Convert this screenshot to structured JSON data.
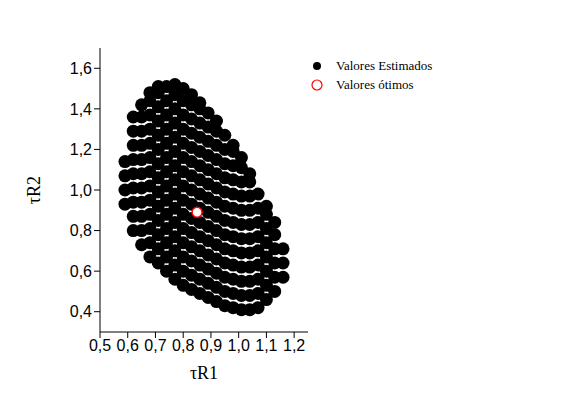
{
  "chart_data": {
    "type": "scatter",
    "x_label": "τR1",
    "y_label": "τR2",
    "legend": "upper right",
    "xlim": [
      0.5,
      1.25
    ],
    "ylim": [
      0.3,
      1.7
    ],
    "xticks": [
      {
        "value": 0.5,
        "label": "0,5"
      },
      {
        "value": 0.6,
        "label": "0,6"
      },
      {
        "value": 0.7,
        "label": "0,7"
      },
      {
        "value": 0.8,
        "label": "0,8"
      },
      {
        "value": 0.9,
        "label": "0,9"
      },
      {
        "value": 1.0,
        "label": "1,0"
      },
      {
        "value": 1.1,
        "label": "1,1"
      },
      {
        "value": 1.2,
        "label": "1,2"
      }
    ],
    "yticks": [
      {
        "value": 0.4,
        "label": "0,4"
      },
      {
        "value": 0.6,
        "label": "0,6"
      },
      {
        "value": 0.8,
        "label": "0,8"
      },
      {
        "value": 1.0,
        "label": "1,0"
      },
      {
        "value": 1.2,
        "label": "1,2"
      },
      {
        "value": 1.4,
        "label": "1,4"
      },
      {
        "value": 1.6,
        "label": "1,6"
      }
    ],
    "series": [
      {
        "name": "Valores Estimados",
        "color": "#000000",
        "marker": "circle",
        "x": [
          0.59,
          0.59,
          0.59,
          0.59,
          0.62,
          0.62,
          0.62,
          0.62,
          0.62,
          0.62,
          0.62,
          0.62,
          0.62,
          0.65,
          0.65,
          0.65,
          0.65,
          0.65,
          0.65,
          0.65,
          0.65,
          0.65,
          0.65,
          0.65,
          0.68,
          0.68,
          0.68,
          0.68,
          0.68,
          0.68,
          0.68,
          0.68,
          0.68,
          0.68,
          0.68,
          0.68,
          0.68,
          0.71,
          0.71,
          0.71,
          0.71,
          0.71,
          0.71,
          0.71,
          0.71,
          0.71,
          0.71,
          0.71,
          0.71,
          0.71,
          0.71,
          0.74,
          0.74,
          0.74,
          0.74,
          0.74,
          0.74,
          0.74,
          0.74,
          0.74,
          0.74,
          0.74,
          0.74,
          0.74,
          0.74,
          0.77,
          0.77,
          0.77,
          0.77,
          0.77,
          0.77,
          0.77,
          0.77,
          0.77,
          0.77,
          0.77,
          0.77,
          0.77,
          0.77,
          0.77,
          0.8,
          0.8,
          0.8,
          0.8,
          0.8,
          0.8,
          0.8,
          0.8,
          0.8,
          0.8,
          0.8,
          0.8,
          0.8,
          0.8,
          0.8,
          0.83,
          0.83,
          0.83,
          0.83,
          0.83,
          0.83,
          0.83,
          0.83,
          0.83,
          0.83,
          0.83,
          0.83,
          0.83,
          0.83,
          0.83,
          0.86,
          0.86,
          0.86,
          0.86,
          0.86,
          0.86,
          0.86,
          0.86,
          0.86,
          0.86,
          0.86,
          0.86,
          0.86,
          0.86,
          0.86,
          0.89,
          0.89,
          0.89,
          0.89,
          0.89,
          0.89,
          0.89,
          0.89,
          0.89,
          0.89,
          0.89,
          0.89,
          0.89,
          0.89,
          0.92,
          0.92,
          0.92,
          0.92,
          0.92,
          0.92,
          0.92,
          0.92,
          0.92,
          0.92,
          0.92,
          0.92,
          0.92,
          0.92,
          0.95,
          0.95,
          0.95,
          0.95,
          0.95,
          0.95,
          0.95,
          0.95,
          0.95,
          0.95,
          0.95,
          0.95,
          0.95,
          0.98,
          0.98,
          0.98,
          0.98,
          0.98,
          0.98,
          0.98,
          0.98,
          0.98,
          0.98,
          0.98,
          0.98,
          0.98,
          1.01,
          1.01,
          1.01,
          1.01,
          1.01,
          1.01,
          1.01,
          1.01,
          1.01,
          1.01,
          1.01,
          1.01,
          1.04,
          1.04,
          1.04,
          1.04,
          1.04,
          1.04,
          1.04,
          1.04,
          1.04,
          1.04,
          1.04,
          1.07,
          1.07,
          1.07,
          1.07,
          1.07,
          1.07,
          1.07,
          1.07,
          1.07,
          1.1,
          1.1,
          1.1,
          1.1,
          1.1,
          1.1,
          1.1,
          1.1,
          1.13,
          1.13,
          1.13,
          1.13,
          1.13,
          1.13,
          1.16,
          1.16,
          1.16
        ],
        "values": [
          0.93,
          1.0,
          1.07,
          1.14,
          0.8,
          0.87,
          0.94,
          1.01,
          1.08,
          1.15,
          1.22,
          1.29,
          1.36,
          0.73,
          0.8,
          0.87,
          0.94,
          1.01,
          1.08,
          1.15,
          1.22,
          1.29,
          1.36,
          1.42,
          0.67,
          0.74,
          0.81,
          0.88,
          0.95,
          1.02,
          1.09,
          1.16,
          1.23,
          1.3,
          1.37,
          1.44,
          1.48,
          0.64,
          0.71,
          0.78,
          0.85,
          0.92,
          0.99,
          1.06,
          1.13,
          1.2,
          1.27,
          1.34,
          1.41,
          1.48,
          1.51,
          0.6,
          0.67,
          0.74,
          0.81,
          0.88,
          0.95,
          1.02,
          1.09,
          1.16,
          1.23,
          1.3,
          1.37,
          1.44,
          1.51,
          0.56,
          0.63,
          0.7,
          0.77,
          0.84,
          0.91,
          0.98,
          1.05,
          1.12,
          1.19,
          1.26,
          1.33,
          1.4,
          1.47,
          1.52,
          0.53,
          0.6,
          0.67,
          0.74,
          0.81,
          0.88,
          0.95,
          1.02,
          1.09,
          1.16,
          1.23,
          1.3,
          1.37,
          1.44,
          1.5,
          0.51,
          0.58,
          0.65,
          0.72,
          0.79,
          0.86,
          0.93,
          1.0,
          1.07,
          1.14,
          1.21,
          1.28,
          1.35,
          1.42,
          1.47,
          0.49,
          0.56,
          0.63,
          0.7,
          0.77,
          0.84,
          0.91,
          0.98,
          1.05,
          1.12,
          1.19,
          1.26,
          1.33,
          1.4,
          1.43,
          0.47,
          0.54,
          0.61,
          0.68,
          0.75,
          0.82,
          0.89,
          0.96,
          1.03,
          1.1,
          1.17,
          1.24,
          1.31,
          1.38,
          0.45,
          0.52,
          0.59,
          0.66,
          0.73,
          0.8,
          0.87,
          0.94,
          1.01,
          1.08,
          1.15,
          1.22,
          1.29,
          1.34,
          0.43,
          0.5,
          0.57,
          0.64,
          0.71,
          0.78,
          0.85,
          0.92,
          0.99,
          1.06,
          1.13,
          1.2,
          1.27,
          0.42,
          0.49,
          0.56,
          0.63,
          0.7,
          0.77,
          0.84,
          0.91,
          0.98,
          1.05,
          1.12,
          1.19,
          1.22,
          0.41,
          0.48,
          0.55,
          0.62,
          0.69,
          0.76,
          0.83,
          0.9,
          0.97,
          1.04,
          1.11,
          1.16,
          0.41,
          0.48,
          0.55,
          0.62,
          0.69,
          0.76,
          0.83,
          0.9,
          0.97,
          1.04,
          1.08,
          0.42,
          0.49,
          0.56,
          0.63,
          0.7,
          0.77,
          0.84,
          0.91,
          0.98,
          0.46,
          0.53,
          0.6,
          0.67,
          0.74,
          0.81,
          0.88,
          0.92,
          0.5,
          0.57,
          0.64,
          0.71,
          0.78,
          0.84,
          0.57,
          0.64,
          0.71
        ]
      },
      {
        "name": "Valores ótimos",
        "color": "#ff0000",
        "marker": "open_circle",
        "x": [
          0.85
        ],
        "values": [
          0.89
        ]
      }
    ]
  }
}
